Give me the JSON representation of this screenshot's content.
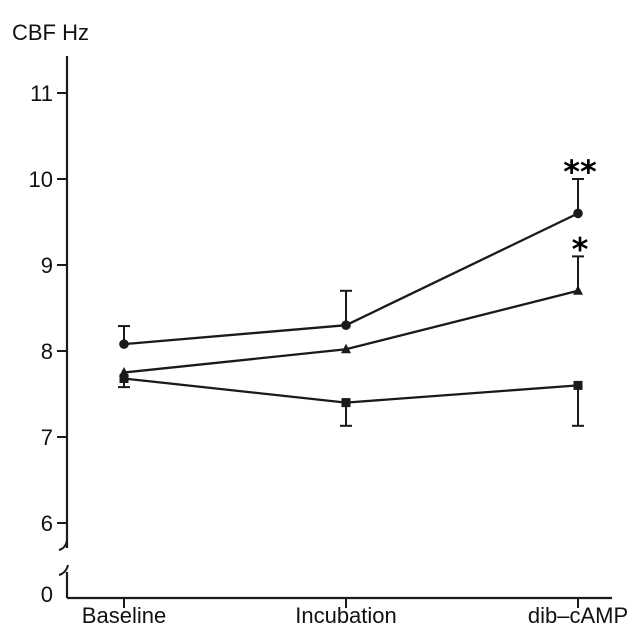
{
  "chart_data": {
    "type": "line",
    "title": "",
    "ylabel": "CBF  Hz",
    "xlabel": "",
    "categories": [
      "Baseline",
      "Incubation",
      "dib–cAMP"
    ],
    "y_ticks": [
      "0",
      "6",
      "7",
      "8",
      "9",
      "10",
      "11"
    ],
    "ylim": [
      6,
      11.5
    ],
    "axis_break": true,
    "grid": false,
    "series": [
      {
        "marker": "circle",
        "values": [
          8.08,
          8.3,
          9.6
        ],
        "error_upper": [
          8.29,
          8.7,
          10.0
        ],
        "error_lower": [
          null,
          null,
          null
        ]
      },
      {
        "marker": "triangle",
        "values": [
          7.75,
          8.02,
          8.7
        ],
        "error_upper": [
          null,
          null,
          9.1
        ],
        "error_lower": [
          null,
          null,
          null
        ]
      },
      {
        "marker": "square",
        "values": [
          7.68,
          7.4,
          7.6
        ],
        "error_upper": [
          null,
          null,
          null
        ],
        "error_lower": [
          7.58,
          7.13,
          7.13
        ]
      }
    ],
    "annotations": [
      {
        "text": "**",
        "category": "dib–cAMP",
        "series": 0
      },
      {
        "text": "*",
        "category": "dib–cAMP",
        "series": 1
      }
    ],
    "line_color": "#1a1a1a"
  }
}
